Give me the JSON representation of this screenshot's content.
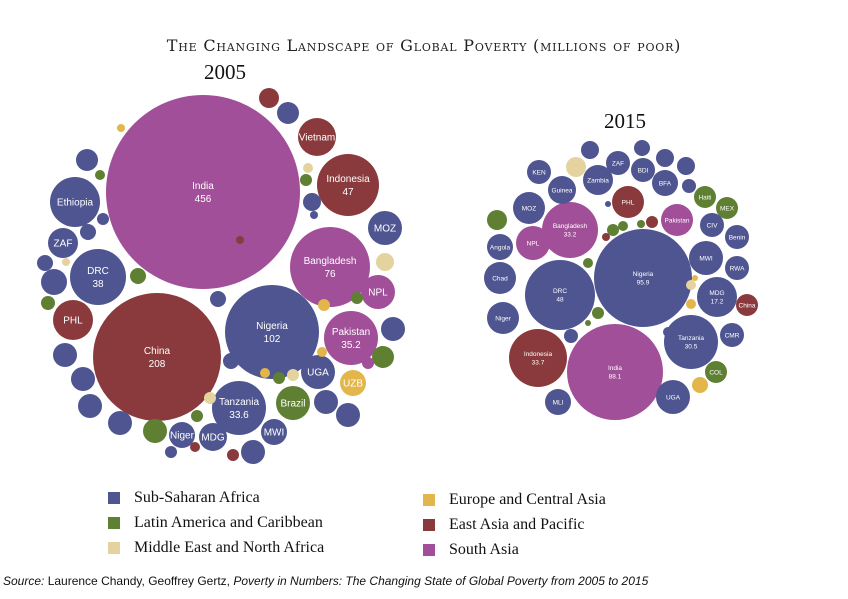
{
  "title": "The Changing Landscape of Global Poverty (millions of poor)",
  "source": {
    "prefix": "Source:",
    "authors": " Laurence Chandy, Geoffrey Gertz, ",
    "work": "Poverty in Numbers: The Changing State of Global Poverty from 2005 to 2015"
  },
  "colors": {
    "ssa": "#4e5590",
    "lac": "#5f7f33",
    "mena": "#e5d39f",
    "eca": "#e2b64a",
    "eap": "#8a3a3d",
    "sa": "#a24f99"
  },
  "legend": [
    {
      "key": "ssa",
      "label": "Sub-Saharan Africa"
    },
    {
      "key": "lac",
      "label": "Latin America and Caribbean"
    },
    {
      "key": "mena",
      "label": "Middle East and North Africa"
    },
    {
      "key": "eca",
      "label": "Europe and Central Asia"
    },
    {
      "key": "eap",
      "label": "East Asia and Pacific"
    },
    {
      "key": "sa",
      "label": "South Asia"
    }
  ],
  "chart_data": [
    {
      "type": "bubble",
      "title": "2005",
      "unit": "millions of poor",
      "bubbles": [
        {
          "label": "India",
          "value": "456",
          "region": "sa"
        },
        {
          "label": "China",
          "value": "208",
          "region": "eap"
        },
        {
          "label": "Nigeria",
          "value": "102",
          "region": "ssa"
        },
        {
          "label": "Bangladesh",
          "value": "76",
          "region": "sa"
        },
        {
          "label": "Indonesia",
          "value": "47",
          "region": "eap"
        },
        {
          "label": "Vietnam",
          "value": "",
          "region": "eap"
        },
        {
          "label": "DRC",
          "value": "38",
          "region": "ssa"
        },
        {
          "label": "Ethiopia",
          "value": "",
          "region": "ssa"
        },
        {
          "label": "ZAF",
          "value": "",
          "region": "ssa"
        },
        {
          "label": "PHL",
          "value": "",
          "region": "eap"
        },
        {
          "label": "Pakistan",
          "value": "35.2",
          "region": "sa"
        },
        {
          "label": "NPL",
          "value": "",
          "region": "sa"
        },
        {
          "label": "MOZ",
          "value": "",
          "region": "ssa"
        },
        {
          "label": "UZB",
          "value": "",
          "region": "eca"
        },
        {
          "label": "UGA",
          "value": "",
          "region": "ssa"
        },
        {
          "label": "Brazil",
          "value": "",
          "region": "lac"
        },
        {
          "label": "Tanzania",
          "value": "33.6",
          "region": "ssa"
        },
        {
          "label": "MWI",
          "value": "",
          "region": "ssa"
        },
        {
          "label": "MDG",
          "value": "",
          "region": "ssa"
        },
        {
          "label": "Niger",
          "value": "",
          "region": "ssa"
        },
        {
          "region": "eap"
        },
        {
          "region": "ssa"
        },
        {
          "region": "ssa"
        },
        {
          "region": "lac"
        },
        {
          "region": "ssa"
        },
        {
          "region": "mena"
        },
        {
          "region": "lac"
        },
        {
          "region": "ssa"
        },
        {
          "region": "ssa"
        },
        {
          "region": "ssa"
        },
        {
          "region": "ssa"
        },
        {
          "region": "mena"
        },
        {
          "region": "lac"
        },
        {
          "region": "ssa"
        },
        {
          "region": "ssa"
        },
        {
          "region": "ssa"
        },
        {
          "region": "ssa"
        },
        {
          "region": "lac"
        },
        {
          "region": "ssa"
        },
        {
          "region": "eap"
        },
        {
          "region": "ssa"
        },
        {
          "region": "eap"
        },
        {
          "region": "ssa"
        },
        {
          "region": "ssa"
        },
        {
          "region": "ssa"
        },
        {
          "region": "lac"
        },
        {
          "region": "sa"
        },
        {
          "region": "mena"
        },
        {
          "region": "lac"
        },
        {
          "region": "eca"
        },
        {
          "region": "eca"
        },
        {
          "region": "mena"
        },
        {
          "region": "lac"
        },
        {
          "region": "eca"
        },
        {
          "region": "ssa"
        },
        {
          "region": "ssa"
        },
        {
          "region": "lac"
        },
        {
          "region": "eca"
        },
        {
          "region": "mena"
        },
        {
          "region": "lac"
        },
        {
          "region": "eap"
        },
        {
          "region": "ssa"
        }
      ]
    },
    {
      "type": "bubble",
      "title": "2015",
      "unit": "millions of poor",
      "bubbles": [
        {
          "label": "Nigeria",
          "value": "95.9",
          "region": "ssa"
        },
        {
          "label": "India",
          "value": "88.1",
          "region": "sa"
        },
        {
          "label": "DRC",
          "value": "48",
          "region": "ssa"
        },
        {
          "label": "Indonesia",
          "value": "33.7",
          "region": "eap"
        },
        {
          "label": "Bangladesh",
          "value": "33.2",
          "region": "sa"
        },
        {
          "label": "Tanzania",
          "value": "30.5",
          "region": "ssa"
        },
        {
          "label": "MDG",
          "value": "17.2",
          "region": "ssa"
        },
        {
          "label": "PHL",
          "value": "",
          "region": "eap"
        },
        {
          "label": "Pakistan",
          "value": "",
          "region": "sa"
        },
        {
          "label": "NPL",
          "value": "",
          "region": "sa"
        },
        {
          "label": "MWI",
          "value": "",
          "region": "ssa"
        },
        {
          "label": "China",
          "value": "",
          "region": "eap"
        },
        {
          "label": "CMR",
          "value": "",
          "region": "ssa"
        },
        {
          "label": "COL",
          "value": "",
          "region": "lac"
        },
        {
          "label": "UGA",
          "value": "",
          "region": "ssa"
        },
        {
          "label": "MLI",
          "value": "",
          "region": "ssa"
        },
        {
          "label": "Niger",
          "value": "",
          "region": "ssa"
        },
        {
          "label": "Chad",
          "value": "",
          "region": "ssa"
        },
        {
          "label": "Angola",
          "value": "",
          "region": "ssa"
        },
        {
          "label": "MOZ",
          "value": "",
          "region": "ssa"
        },
        {
          "label": "KEN",
          "value": "",
          "region": "ssa"
        },
        {
          "label": "Guinea",
          "value": "",
          "region": "ssa"
        },
        {
          "label": "Zambia",
          "value": "",
          "region": "ssa"
        },
        {
          "label": "ZAF",
          "value": "",
          "region": "ssa"
        },
        {
          "label": "BDI",
          "value": "",
          "region": "ssa"
        },
        {
          "label": "BFA",
          "value": "",
          "region": "ssa"
        },
        {
          "label": "Haiti",
          "value": "",
          "region": "lac"
        },
        {
          "label": "MEX",
          "value": "",
          "region": "lac"
        },
        {
          "label": "CIV",
          "value": "",
          "region": "ssa"
        },
        {
          "label": "Benin",
          "value": "",
          "region": "ssa"
        },
        {
          "label": "RWA",
          "value": "",
          "region": "ssa"
        },
        {
          "region": "ssa"
        },
        {
          "region": "ssa"
        },
        {
          "region": "ssa"
        },
        {
          "region": "ssa"
        },
        {
          "region": "ssa"
        },
        {
          "region": "mena"
        },
        {
          "region": "lac"
        },
        {
          "region": "eca"
        },
        {
          "region": "ssa"
        },
        {
          "region": "ssa"
        },
        {
          "region": "lac"
        },
        {
          "region": "lac"
        },
        {
          "region": "eap"
        },
        {
          "region": "lac"
        },
        {
          "region": "lac"
        },
        {
          "region": "lac"
        },
        {
          "region": "lac"
        },
        {
          "region": "eca"
        },
        {
          "region": "ssa"
        },
        {
          "region": "mena"
        },
        {
          "region": "eca"
        },
        {
          "region": "eap"
        },
        {
          "region": "ssa"
        }
      ]
    }
  ]
}
